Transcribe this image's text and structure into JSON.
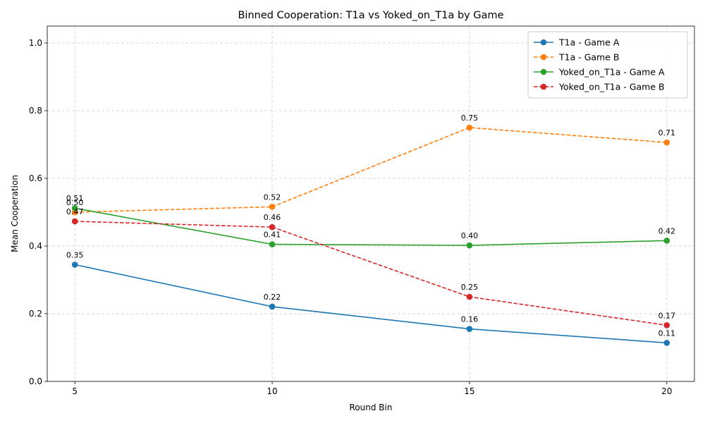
{
  "chart_data": {
    "type": "line",
    "title": "Binned Cooperation: T1a vs Yoked_on_T1a by Game",
    "xlabel": "Round Bin",
    "ylabel": "Mean Cooperation",
    "x": [
      5,
      10,
      15,
      20
    ],
    "xticks": [
      "5",
      "10",
      "15",
      "20"
    ],
    "xlim": [
      4.3,
      20.7
    ],
    "ylim": [
      0.0,
      1.05
    ],
    "yticks": [
      "0.0",
      "0.2",
      "0.4",
      "0.6",
      "0.8",
      "1.0"
    ],
    "grid": true,
    "legend_position": "top-right",
    "series": [
      {
        "name": "T1a - Game A",
        "values": [
          0.345,
          0.221,
          0.155,
          0.114
        ],
        "labels": [
          "0.35",
          "0.22",
          "0.16",
          "0.11"
        ],
        "color": "#1f77b4",
        "linestyle": "solid"
      },
      {
        "name": "T1a - Game B",
        "values": [
          0.5,
          0.516,
          0.75,
          0.706
        ],
        "labels": [
          "0.50",
          "0.52",
          "0.75",
          "0.71"
        ],
        "color": "#ff7f0e",
        "linestyle": "dashed"
      },
      {
        "name": "Yoked_on_T1a - Game A",
        "values": [
          0.512,
          0.405,
          0.402,
          0.416
        ],
        "labels": [
          "0.51",
          "0.41",
          "0.40",
          "0.42"
        ],
        "color": "#2ca02c",
        "linestyle": "solid"
      },
      {
        "name": "Yoked_on_T1a - Game B",
        "values": [
          0.473,
          0.456,
          0.25,
          0.166
        ],
        "labels": [
          "0.47",
          "0.46",
          "0.25",
          "0.17"
        ],
        "color": "#d62728",
        "linestyle": "dashed"
      }
    ]
  }
}
